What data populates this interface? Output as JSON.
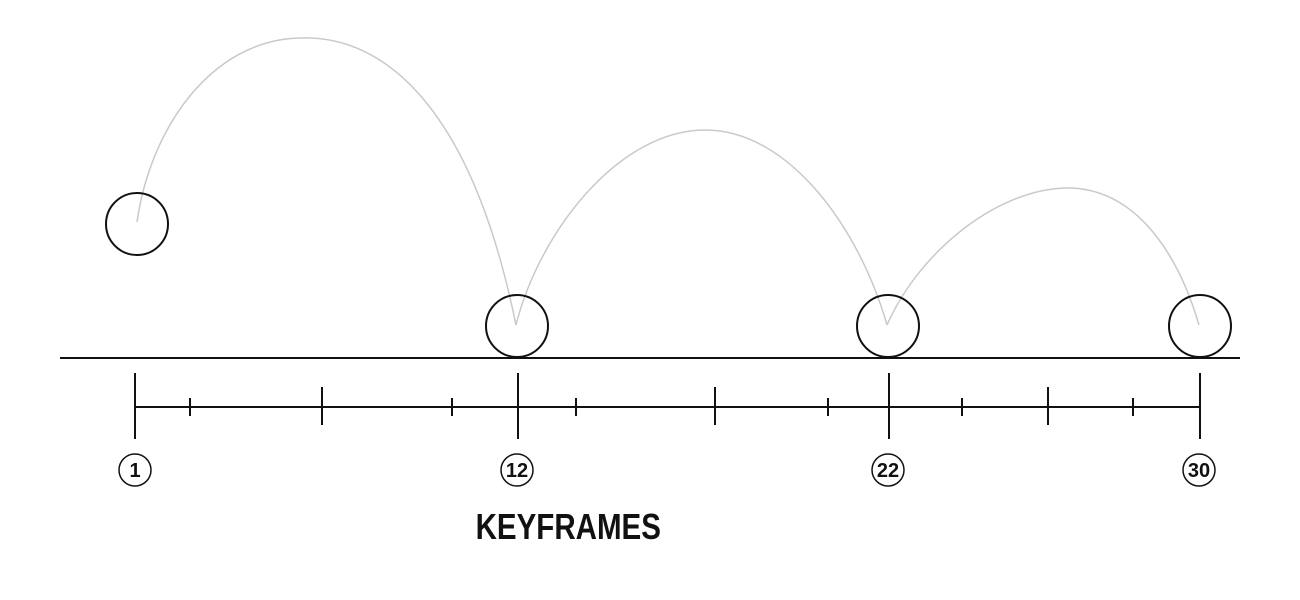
{
  "diagram": {
    "title": "KEYFRAMES",
    "keyframes": [
      {
        "frame": 1,
        "label": "1"
      },
      {
        "frame": 12,
        "label": "12"
      },
      {
        "frame": 22,
        "label": "22"
      },
      {
        "frame": 30,
        "label": "30"
      }
    ],
    "colors": {
      "line": "#111111",
      "arc": "#c9c9c9"
    }
  }
}
